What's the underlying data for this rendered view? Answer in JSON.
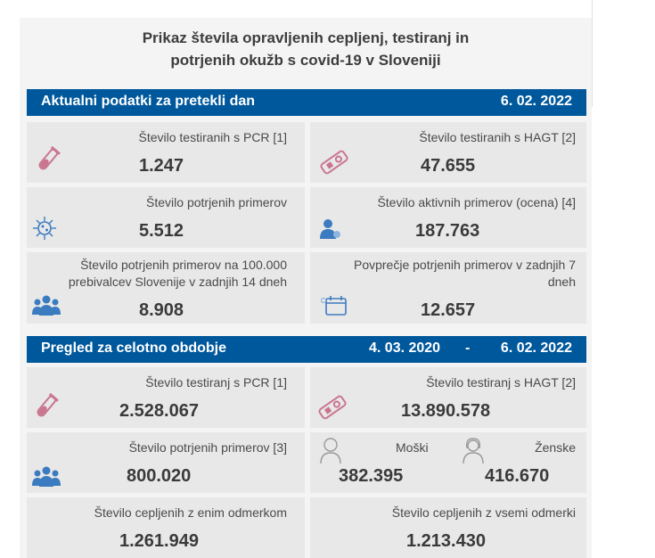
{
  "header": {
    "title_line1": "Prikaz števila opravljenih cepljenj, testiranj in",
    "title_line2": "potrjenih okužb s covid-19 v Sloveniji"
  },
  "section1": {
    "title": "Aktualni podatki za pretekli dan",
    "date": "6. 02. 2022",
    "cards": [
      {
        "label": "Število testiranih s PCR [1]",
        "value": "1.247",
        "icon": "test-tube-icon"
      },
      {
        "label": "Število testiranih s HAGT [2]",
        "value": "47.655",
        "icon": "rapid-test-icon"
      },
      {
        "label": "Število potrjenih primerov",
        "value": "5.512",
        "icon": "virus-icon"
      },
      {
        "label": "Število aktivnih primerov (ocena) [4]",
        "value": "187.763",
        "icon": "person-virus-icon"
      },
      {
        "label_line1": "Število potrjenih primerov na 100.000",
        "label_line2": "prebivalcev Slovenije v zadnjih 14 dneh",
        "value": "8.908",
        "icon": "people-group-icon"
      },
      {
        "label_line1": "Povprečje potrjenih primerov v zadnjih 7",
        "label_line2": "dneh",
        "value": "12.657",
        "icon": "calendar-icon"
      }
    ]
  },
  "section2": {
    "title": "Pregled za celotno obdobje",
    "date_from": "4. 03. 2020",
    "dash": "-",
    "date_to": "6. 02. 2022",
    "cards": [
      {
        "label": "Število testiranj s PCR [1]",
        "value": "2.528.067",
        "icon": "test-tube-icon"
      },
      {
        "label": "Število testiranj s HAGT [2]",
        "value": "13.890.578",
        "icon": "rapid-test-icon"
      },
      {
        "label": "Število potrjenih primerov [3]",
        "value": "800.020",
        "icon": "people-group-icon"
      },
      {
        "label": "Moški",
        "value": "382.395",
        "icon": "male-icon"
      },
      {
        "label": "Ženske",
        "value": "416.670",
        "icon": "female-icon"
      },
      {
        "label": "Število cepljenih z enim odmerkom",
        "value": "1.261.949"
      },
      {
        "label": "Število cepljenih z vsemi odmerki",
        "value": "1.213.430"
      }
    ]
  },
  "colors": {
    "header_bar": "#00589c",
    "card_bg": "#e8e8e8",
    "icon_pink": "#c9758f",
    "icon_blue": "#3b7bbf"
  }
}
